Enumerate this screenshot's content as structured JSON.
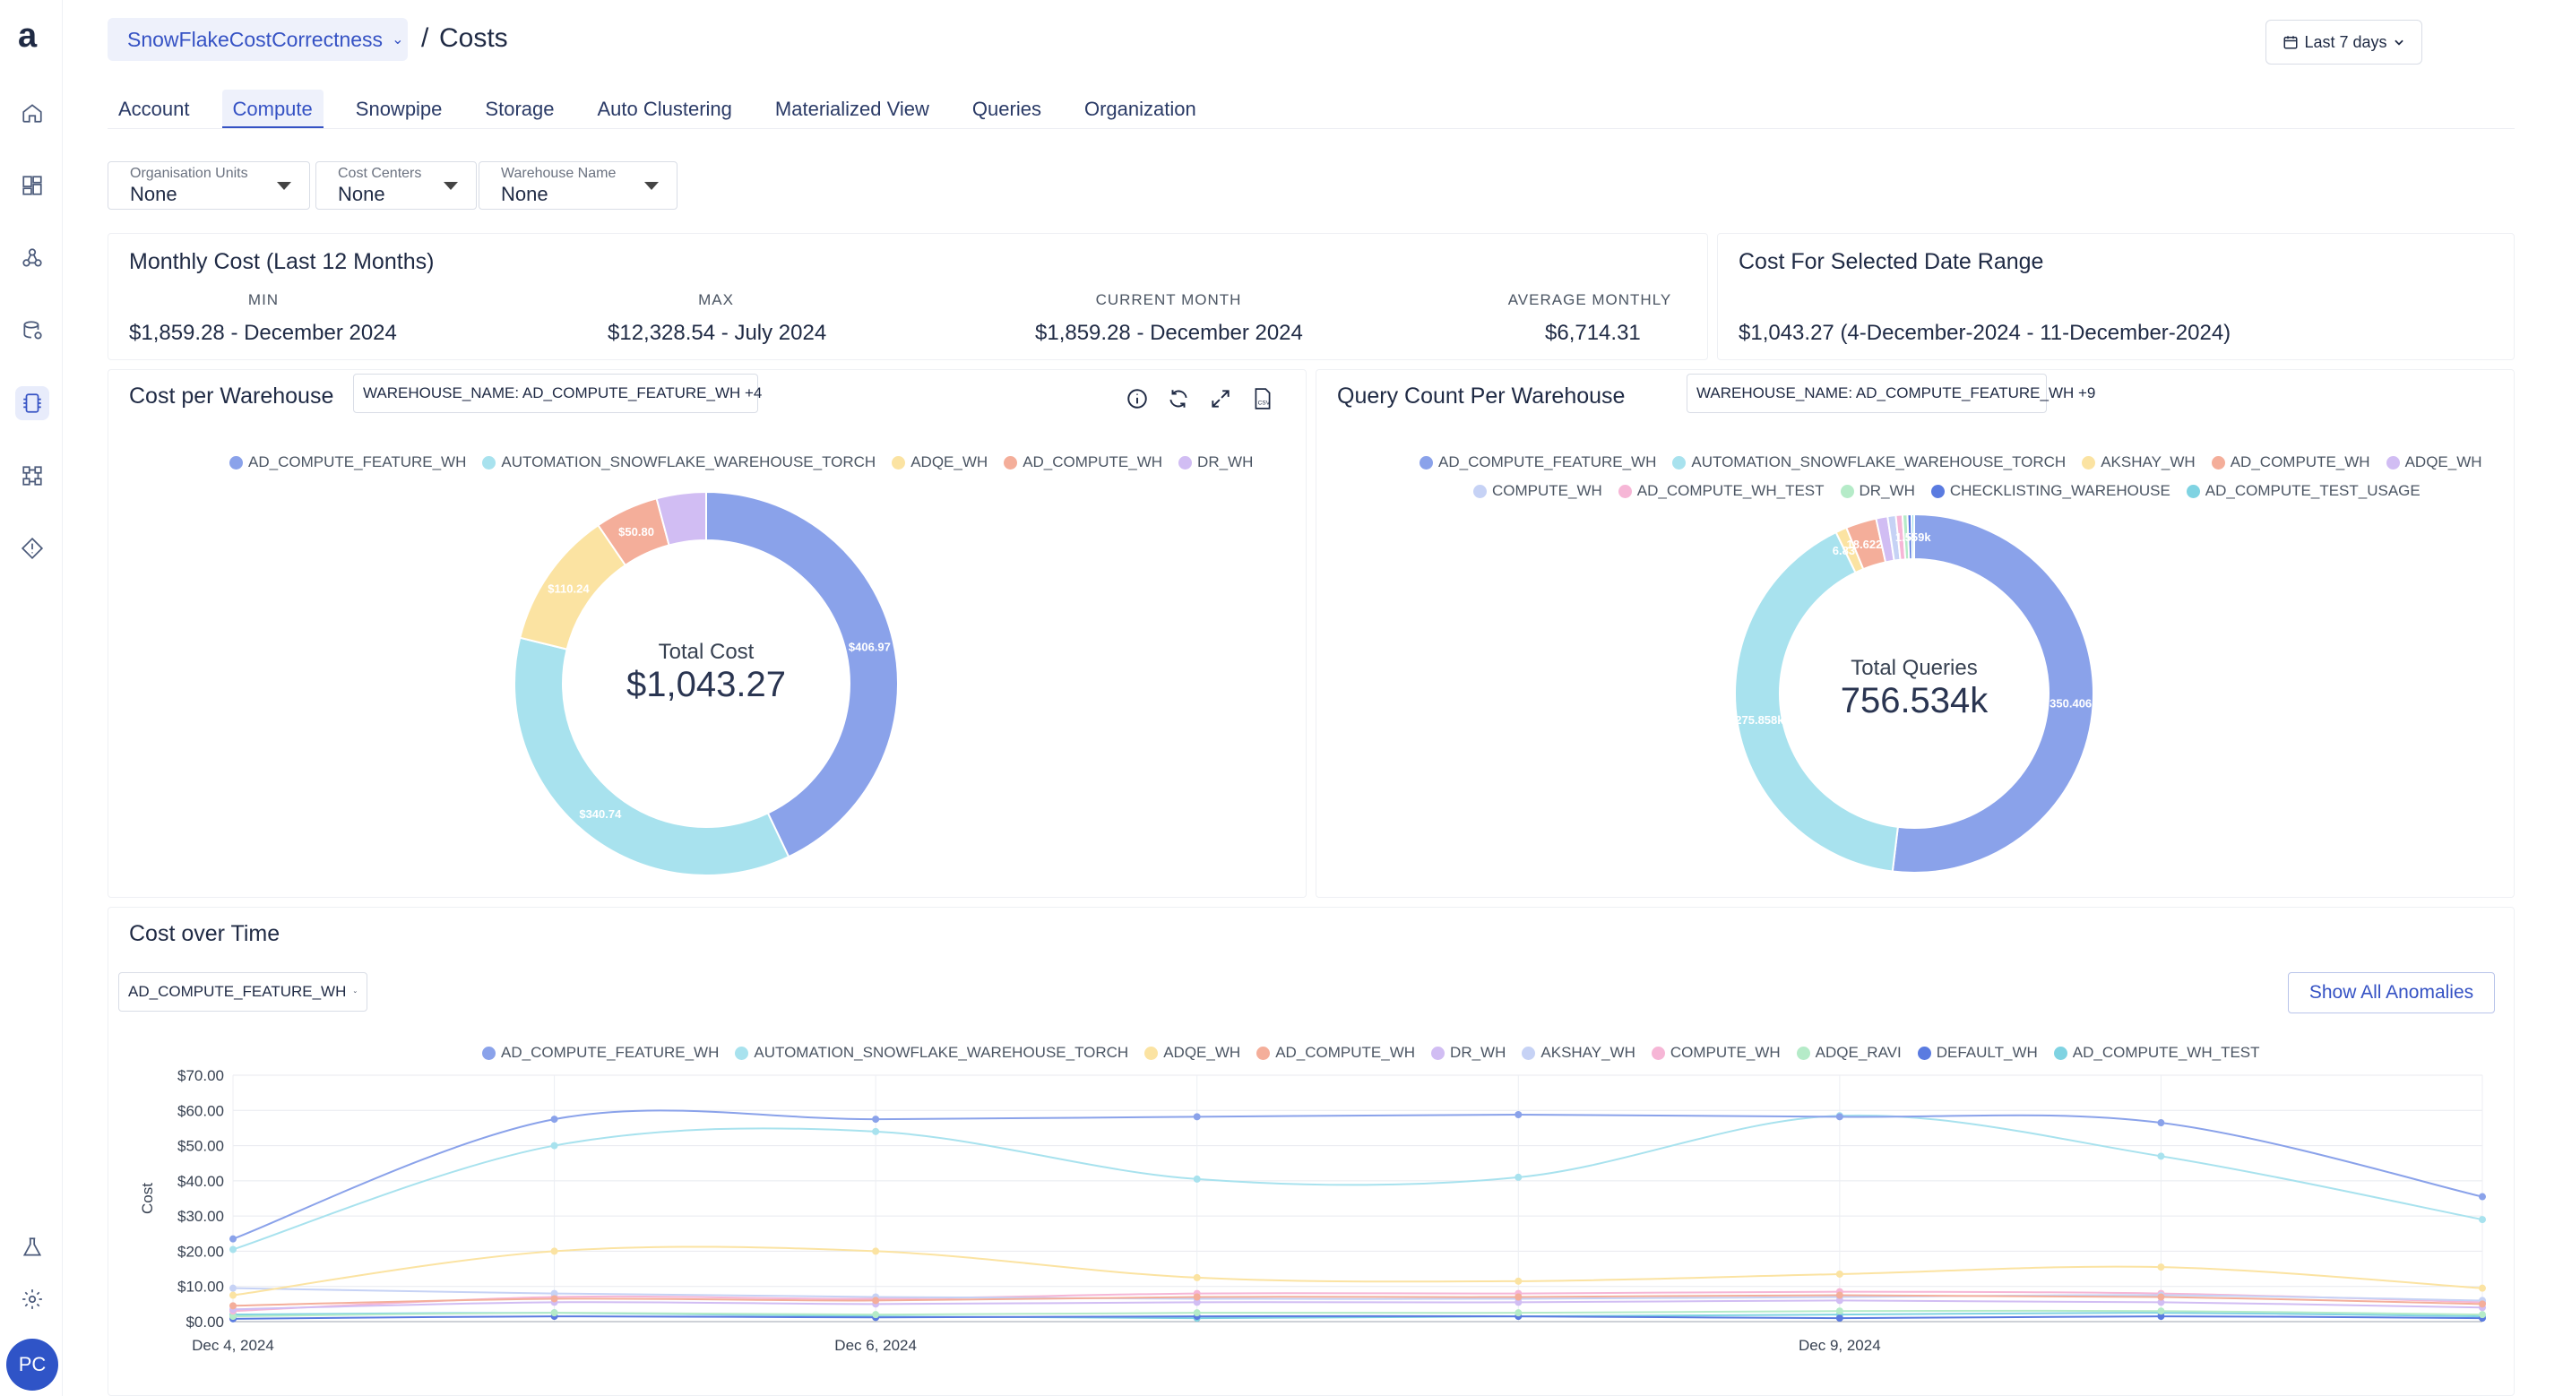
{
  "app": {
    "logo_letter": "a",
    "user_initials": "PC"
  },
  "header": {
    "account_name": "SnowFlakeCostCorrectness",
    "separator": "/",
    "page_title": "Costs",
    "date_range_label": "Last 7 days"
  },
  "tabs": [
    {
      "label": "Account"
    },
    {
      "label": "Compute"
    },
    {
      "label": "Snowpipe"
    },
    {
      "label": "Storage"
    },
    {
      "label": "Auto Clustering"
    },
    {
      "label": "Materialized View"
    },
    {
      "label": "Queries"
    },
    {
      "label": "Organization"
    }
  ],
  "filters": [
    {
      "label": "Organisation Units",
      "value": "None"
    },
    {
      "label": "Cost Centers",
      "value": "None"
    },
    {
      "label": "Warehouse Name",
      "value": "None"
    }
  ],
  "monthly_cost": {
    "title": "Monthly Cost (Last 12 Months)",
    "stats": [
      {
        "label": "MIN",
        "value": "$1,859.28 - December 2024"
      },
      {
        "label": "MAX",
        "value": "$12,328.54 - July 2024"
      },
      {
        "label": "CURRENT MONTH",
        "value": "$1,859.28 - December 2024"
      },
      {
        "label": "AVERAGE MONTHLY",
        "value": "$6,714.31"
      }
    ]
  },
  "selected_range": {
    "title": "Cost For Selected Date Range",
    "value": "$1,043.27 (4-December-2024 - 11-December-2024)"
  },
  "colors": {
    "blue": "#8aa2ea",
    "cyan": "#a8e2ee",
    "yellow": "#fbe3a2",
    "salmon": "#f4ae9a",
    "lavender": "#d1bdf3",
    "lightblue": "#c6d2f5",
    "pink": "#f6b6d6",
    "mint": "#b5ebc8",
    "royal": "#5a7be0",
    "teal": "#7fd3e2"
  },
  "cost_per_warehouse": {
    "title": "Cost per Warehouse",
    "select_label": "WAREHOUSE_NAME: AD_COMPUTE_FEATURE_WH +4",
    "center_label": "Total Cost",
    "center_value": "$1,043.27",
    "legend": [
      "AD_COMPUTE_FEATURE_WH",
      "AUTOMATION_SNOWFLAKE_WAREHOUSE_TORCH",
      "ADQE_WH",
      "AD_COMPUTE_WH",
      "DR_WH"
    ],
    "legend_colors": [
      "#8aa2ea",
      "#a8e2ee",
      "#fbe3a2",
      "#f4ae9a",
      "#d1bdf3"
    ],
    "slices": [
      {
        "name": "AD_COMPUTE_FEATURE_WH",
        "value": 406.97,
        "label": "$406.97"
      },
      {
        "name": "AUTOMATION_SNOWFLAKE_WAREHOUSE_TORCH",
        "value": 340.74,
        "label": "$340.74"
      },
      {
        "name": "ADQE_WH",
        "value": 110.24,
        "label": "$110.24"
      },
      {
        "name": "AD_COMPUTE_WH",
        "value": 50.8,
        "label": "$50.80"
      },
      {
        "name": "DR_WH",
        "value": 39.5,
        "label": ""
      }
    ]
  },
  "query_count": {
    "title": "Query Count Per Warehouse",
    "select_label": "WAREHOUSE_NAME: AD_COMPUTE_FEATURE_WH +9",
    "center_label": "Total Queries",
    "center_value": "756.534k",
    "legend_row1": [
      "AD_COMPUTE_FEATURE_WH",
      "AUTOMATION_SNOWFLAKE_WAREHOUSE_TORCH",
      "AKSHAY_WH",
      "AD_COMPUTE_WH",
      "ADQE_WH"
    ],
    "legend_row1_colors": [
      "#8aa2ea",
      "#a8e2ee",
      "#fbe3a2",
      "#f4ae9a",
      "#d1bdf3"
    ],
    "legend_row2": [
      "COMPUTE_WH",
      "AD_COMPUTE_WH_TEST",
      "DR_WH",
      "CHECKLISTING_WAREHOUSE",
      "AD_COMPUTE_TEST_USAGE"
    ],
    "legend_row2_colors": [
      "#c6d2f5",
      "#f6b6d6",
      "#b5ebc8",
      "#5a7be0",
      "#7fd3e2"
    ],
    "slices": [
      {
        "name": "AD_COMPUTE_FEATURE_WH",
        "value": 350.406,
        "label": "350.406"
      },
      {
        "name": "AUTOMATION_SNOWFLAKE_WAREHOUSE_TORCH",
        "value": 275.858,
        "label": "275.858k"
      },
      {
        "name": "AKSHAY_WH",
        "value": 6.838,
        "label": "6.838k"
      },
      {
        "name": "AD_COMPUTE_WH",
        "value": 18.622,
        "label": "18.622k"
      },
      {
        "name": "ADQE_WH",
        "value": 7.0,
        "label": ""
      },
      {
        "name": "COMPUTE_WH",
        "value": 5.0,
        "label": ""
      },
      {
        "name": "AD_COMPUTE_WH_TEST",
        "value": 4.0,
        "label": ""
      },
      {
        "name": "DR_WH",
        "value": 3.0,
        "label": ""
      },
      {
        "name": "CHECKLISTING_WAREHOUSE",
        "value": 2.5,
        "label": ""
      },
      {
        "name": "AD_COMPUTE_TEST_USAGE",
        "value": 1.559,
        "label": "1.559k"
      }
    ]
  },
  "cost_over_time": {
    "title": "Cost over Time",
    "select_label": "AD_COMPUTE_FEATURE_WH",
    "anomalies_button": "Show All Anomalies",
    "ylabel": "Cost"
  },
  "chart_data": {
    "type": "line",
    "title": "Cost over Time",
    "xlabel": "",
    "ylabel": "Cost",
    "ylim": [
      0,
      70
    ],
    "yticks": [
      "$0.00",
      "$10.00",
      "$20.00",
      "$30.00",
      "$40.00",
      "$50.00",
      "$60.00",
      "$70.00"
    ],
    "x": [
      0,
      1,
      2,
      3,
      4,
      5,
      6,
      7
    ],
    "x_tick_labels": [
      {
        "x": 0,
        "label": "Dec 4, 2024"
      },
      {
        "x": 2,
        "label": "Dec 6, 2024"
      },
      {
        "x": 5,
        "label": "Dec 9, 2024"
      }
    ],
    "series": [
      {
        "name": "AD_COMPUTE_FEATURE_WH",
        "color": "#8aa2ea",
        "values": [
          23.5,
          57.5,
          57.5,
          58.2,
          58.8,
          58.2,
          56.5,
          35.5
        ]
      },
      {
        "name": "AUTOMATION_SNOWFLAKE_WAREHOUSE_TORCH",
        "color": "#a8e2ee",
        "values": [
          20.5,
          50.0,
          54.0,
          40.5,
          41.0,
          58.5,
          47.0,
          29.0
        ]
      },
      {
        "name": "ADQE_WH",
        "color": "#fbe3a2",
        "values": [
          7.5,
          20.0,
          20.0,
          12.5,
          11.5,
          13.5,
          15.5,
          9.5
        ]
      },
      {
        "name": "AD_COMPUTE_WH",
        "color": "#f4ae9a",
        "values": [
          4.5,
          6.5,
          6.0,
          7.0,
          7.0,
          7.5,
          7.0,
          5.0
        ]
      },
      {
        "name": "DR_WH",
        "color": "#d1bdf3",
        "values": [
          3.5,
          5.5,
          5.0,
          5.5,
          5.5,
          6.0,
          5.5,
          4.0
        ]
      },
      {
        "name": "AKSHAY_WH",
        "color": "#c6d2f5",
        "values": [
          9.5,
          8.0,
          7.0,
          6.5,
          6.5,
          7.0,
          7.5,
          6.0
        ]
      },
      {
        "name": "COMPUTE_WH",
        "color": "#f6b6d6",
        "values": [
          3.0,
          7.0,
          6.5,
          8.0,
          8.0,
          8.5,
          8.0,
          5.5
        ]
      },
      {
        "name": "ADQE_RAVI",
        "color": "#b5ebc8",
        "values": [
          1.5,
          2.5,
          2.0,
          2.5,
          2.5,
          3.0,
          3.0,
          2.0
        ]
      },
      {
        "name": "DEFAULT_WH",
        "color": "#5a7be0",
        "values": [
          0.8,
          1.5,
          1.2,
          1.5,
          1.5,
          1.0,
          1.5,
          1.0
        ]
      },
      {
        "name": "AD_COMPUTE_WH_TEST",
        "color": "#7fd3e2",
        "values": [
          2.0,
          2.5,
          1.5,
          1.0,
          1.5,
          2.0,
          2.5,
          1.5
        ]
      }
    ]
  }
}
